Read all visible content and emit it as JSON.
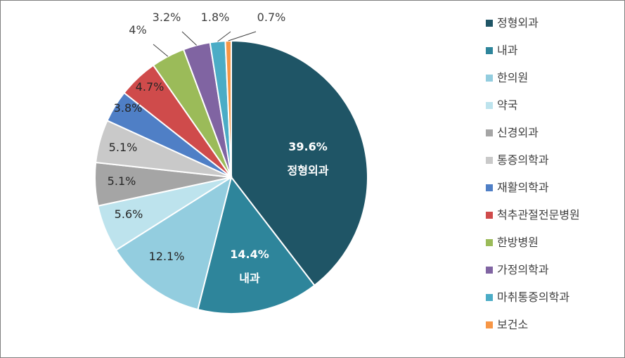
{
  "chart_data": {
    "type": "pie",
    "slices": [
      {
        "name": "정형외과",
        "value": 39.6,
        "label": "39.6%",
        "color": "#1f5566",
        "text_color": "#ffffff",
        "inner": true
      },
      {
        "name": "내과",
        "value": 14.4,
        "label": "14.4%",
        "color": "#2e859b",
        "text_color": "#ffffff",
        "inner": true
      },
      {
        "name": "한의원",
        "value": 12.1,
        "label": "12.1%",
        "color": "#93cddf",
        "text_color": "#262626",
        "inner": true
      },
      {
        "name": "약국",
        "value": 5.6,
        "label": "5.6%",
        "color": "#bde3ed",
        "text_color": "#262626",
        "inner": true
      },
      {
        "name": "신경외과",
        "value": 5.1,
        "label": "5.1%",
        "color": "#a5a5a5",
        "text_color": "#262626",
        "inner": true
      },
      {
        "name": "통증의학과",
        "value": 5.1,
        "label": "5.1%",
        "color": "#c9c9c9",
        "text_color": "#262626",
        "inner": true
      },
      {
        "name": "재활의학과",
        "value": 3.8,
        "label": "3.8%",
        "color": "#4f7fc6",
        "text_color": "#262626",
        "inner": true
      },
      {
        "name": "척추관절전문병원",
        "value": 4.7,
        "label": "4.7%",
        "color": "#cf4b4b",
        "text_color": "#262626",
        "inner": true
      },
      {
        "name": "한방병원",
        "value": 4.0,
        "label": "4%",
        "color": "#9bbb59",
        "text_color": "#404040",
        "inner": false
      },
      {
        "name": "가정의학과",
        "value": 3.2,
        "label": "3.2%",
        "color": "#8064a2",
        "text_color": "#404040",
        "inner": false
      },
      {
        "name": "마취통증의학과",
        "value": 1.8,
        "label": "1.8%",
        "color": "#4bacc6",
        "text_color": "#404040",
        "inner": false
      },
      {
        "name": "보건소",
        "value": 0.7,
        "label": "0.7%",
        "color": "#f79646",
        "text_color": "#404040",
        "inner": false
      }
    ],
    "category_labels_on_slices": [
      "정형외과",
      "내과"
    ],
    "legend_position": "right"
  }
}
